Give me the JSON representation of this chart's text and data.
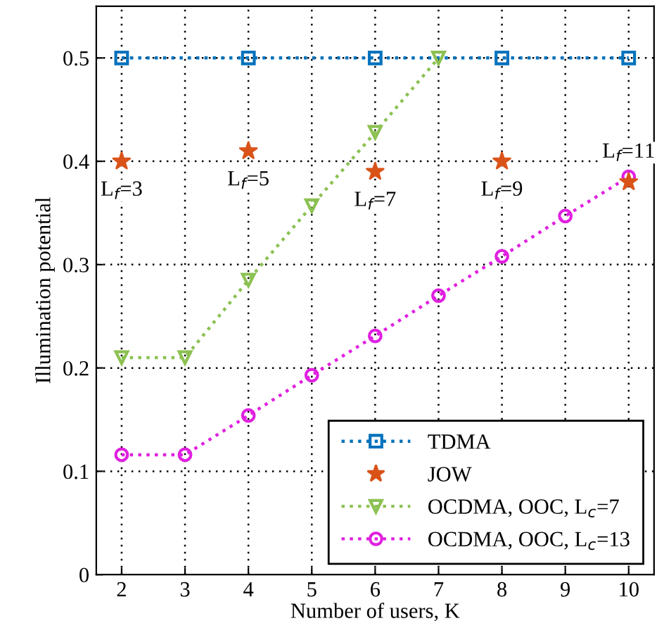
{
  "chart_data": {
    "type": "line",
    "xlabel": "Number of users, K",
    "ylabel": "Illumination potential",
    "xlim": [
      1.6,
      10.4
    ],
    "ylim": [
      0,
      0.55
    ],
    "xticks": [
      2,
      3,
      4,
      5,
      6,
      7,
      8,
      9,
      10
    ],
    "yticks": [
      0,
      0.1,
      0.2,
      0.3,
      0.4,
      0.5
    ],
    "grid": true,
    "legend": "bottom right",
    "series": [
      {
        "name": "TDMA",
        "color": "#0072bd",
        "marker": "square",
        "line_style": "dotted",
        "x": [
          2,
          4,
          6,
          8,
          10
        ],
        "values": [
          0.5,
          0.5,
          0.5,
          0.5,
          0.5
        ]
      },
      {
        "name": "JOW",
        "type": "scatter",
        "color": "#d95319",
        "marker": "star",
        "x": [
          2,
          4,
          6,
          8,
          10
        ],
        "values": [
          0.4,
          0.41,
          0.39,
          0.4,
          0.38
        ]
      },
      {
        "name": "OCDMA, OOC, L$_{c}$=7",
        "color": "#8cc152",
        "marker": "triangle",
        "line_style": "dotted",
        "x": [
          2,
          3,
          4,
          5,
          6,
          7
        ],
        "values": [
          0.21,
          0.21,
          0.285,
          0.357,
          0.428,
          0.5
        ]
      },
      {
        "name": "OCDMA, OOC, L$_{c}$=13",
        "color": "#e020e0",
        "marker": "circle",
        "line_style": "dotted",
        "x": [
          2,
          3,
          4,
          5,
          6,
          7,
          8,
          9,
          10
        ],
        "values": [
          0.116,
          0.116,
          0.154,
          0.193,
          0.231,
          0.27,
          0.308,
          0.347,
          0.385
        ]
      }
    ],
    "annotations": [
      {
        "text": "L$_{f}$=3",
        "x": 2,
        "y": 0.4
      },
      {
        "text": "L$_{f}$=5",
        "x": 4,
        "y": 0.41
      },
      {
        "text": "L$_{f}$=7",
        "x": 6,
        "y": 0.39
      },
      {
        "text": "L$_{f}$=9",
        "x": 8,
        "y": 0.4
      },
      {
        "text": "L$_{f}$=11",
        "x": 10,
        "y": 0.38
      }
    ]
  }
}
